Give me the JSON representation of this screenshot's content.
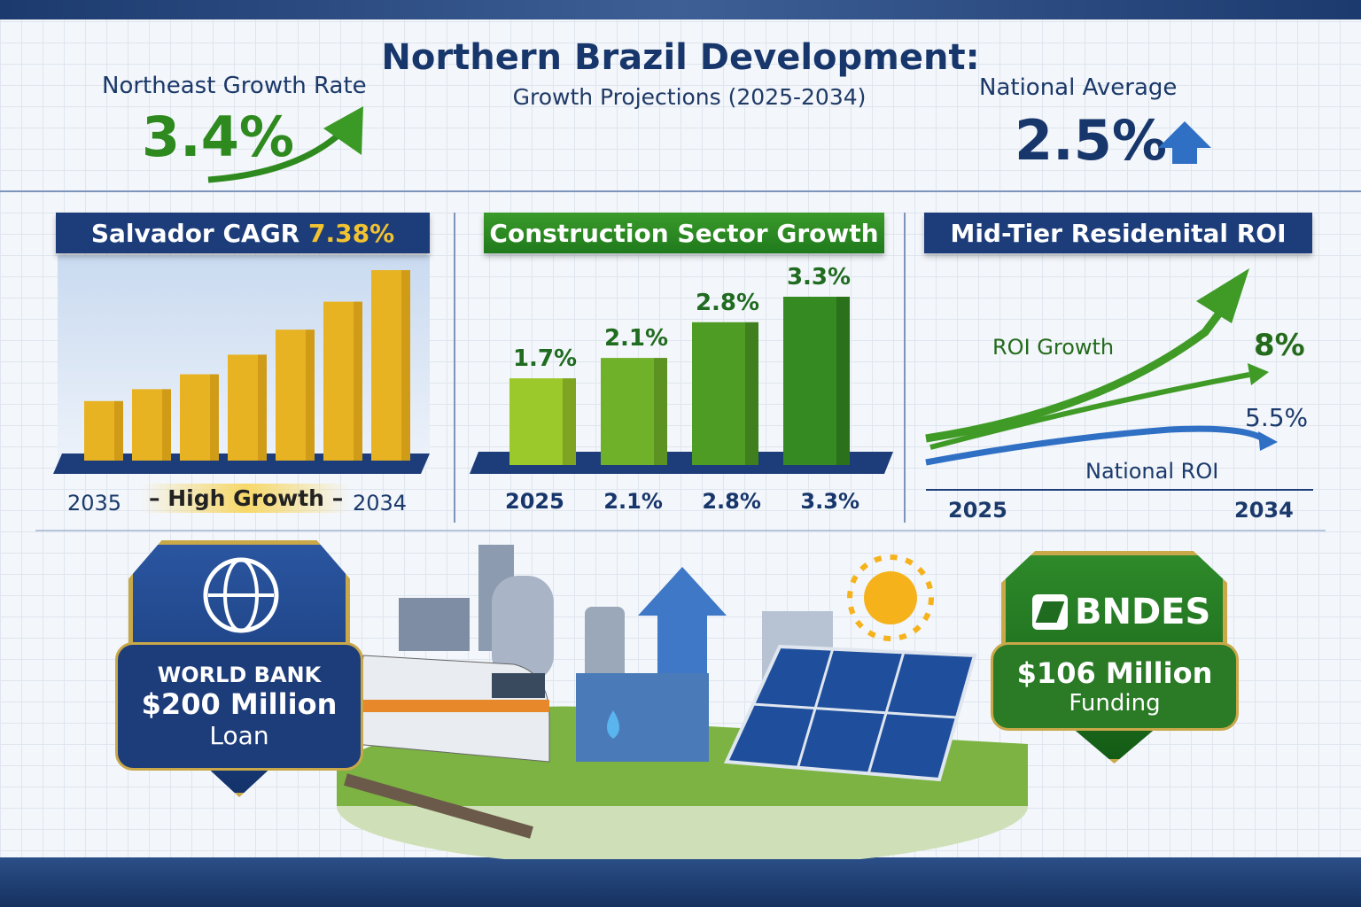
{
  "header": {
    "title": "Northern Brazil Development:",
    "subtitle": "Growth Projections (2025-2034)"
  },
  "kpis": {
    "northeast": {
      "label": "Northeast Growth Rate",
      "value": "3.4%",
      "icon": "trend-arrow-up-icon",
      "color": "#2e8a1e"
    },
    "national": {
      "label": "National Average",
      "value": "2.5%",
      "icon": "arrow-up-icon",
      "color": "#2f6fc4"
    }
  },
  "panels": {
    "salvador": {
      "title_prefix": "Salvador CAGR",
      "title_value": "7.38%",
      "start_label": "2035",
      "middle_label": "High Growth",
      "end_label": "2034"
    },
    "construction": {
      "title": "Construction Sector Growth",
      "x_labels": [
        "2025",
        "2.1%",
        "2.8%",
        "3.3%"
      ]
    },
    "roi": {
      "title": "Mid-Tier Residenital ROI",
      "series_label_1": "ROI Growth",
      "value_1": "8%",
      "series_label_2": "National ROI",
      "value_2": "5.5%",
      "start_label": "2025",
      "end_label": "2034"
    }
  },
  "chart_data": [
    {
      "type": "bar",
      "title": "Salvador CAGR 7.38%",
      "values": [
        1.0,
        1.2,
        1.45,
        1.78,
        2.2,
        2.67,
        3.2
      ],
      "color": "#e8b323"
    },
    {
      "type": "bar",
      "title": "Construction Sector Growth",
      "values": [
        1.7,
        2.1,
        2.8,
        3.3
      ],
      "data_labels": [
        "1.7%",
        "2.1%",
        "2.8%",
        "3.3%"
      ],
      "colors": [
        "#9bc82a",
        "#6fb22a",
        "#4f9c25",
        "#358a22"
      ]
    },
    {
      "type": "line",
      "title": "Mid-Tier Residenital ROI",
      "x": [
        "2025",
        "2034"
      ],
      "series": [
        {
          "name": "ROI Growth",
          "end_value": "8%",
          "color": "#3f9a26"
        },
        {
          "name": "National ROI",
          "end_value": "5.5%",
          "color": "#2f6fc4"
        }
      ]
    }
  ],
  "funding": {
    "world_bank": {
      "name": "WORLD BANK",
      "amount": "$200 Million",
      "type": "Loan",
      "color": "#1d3d7a"
    },
    "bndes": {
      "name": "BNDES",
      "amount": "$106 Million",
      "type": "Funding",
      "color": "#2a7a26"
    }
  }
}
